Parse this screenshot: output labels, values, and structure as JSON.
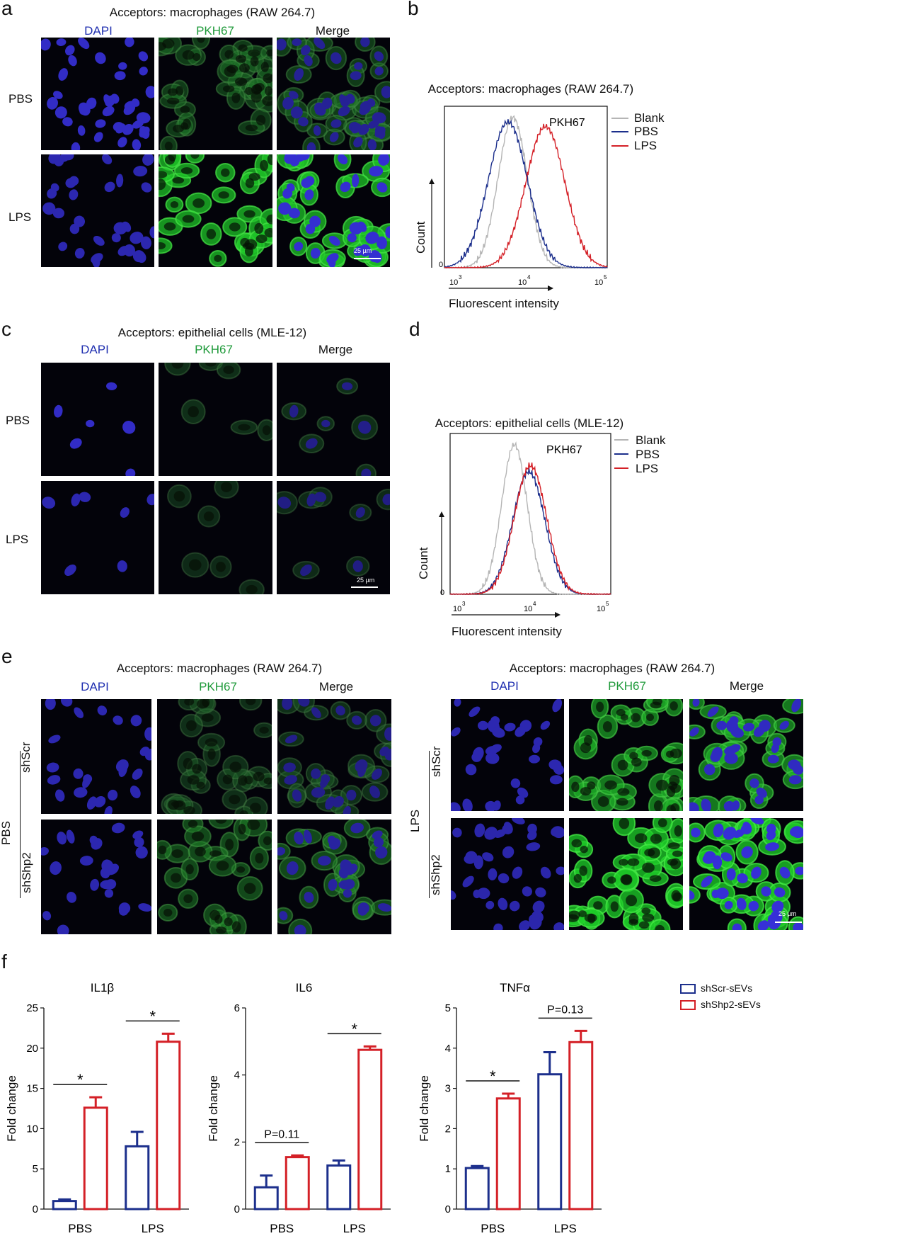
{
  "panel_a": {
    "letter": "a",
    "title": "Acceptors: macrophages (RAW 264.7)",
    "cols": [
      "DAPI",
      "PKH67",
      "Merge"
    ],
    "rows": [
      "PBS",
      "LPS"
    ],
    "scale": "25 µm"
  },
  "panel_b": {
    "letter": "b",
    "title": "Acceptors: macrophages (RAW 264.7)",
    "marker": "PKH67",
    "legend": [
      "Blank",
      "PBS",
      "LPS"
    ],
    "ylabel": "Count",
    "xlabel": "Fluorescent intensity",
    "zero": "0",
    "ticks": [
      "10",
      "3",
      "10",
      "4",
      "10",
      "5"
    ]
  },
  "panel_c": {
    "letter": "c",
    "title": "Acceptors: epithelial cells (MLE-12)",
    "cols": [
      "DAPI",
      "PKH67",
      "Merge"
    ],
    "rows": [
      "PBS",
      "LPS"
    ],
    "scale": "25 µm"
  },
  "panel_d": {
    "letter": "d",
    "title": "Acceptors: epithelial cells (MLE-12)",
    "marker": "PKH67",
    "legend": [
      "Blank",
      "PBS",
      "LPS"
    ],
    "ylabel": "Count",
    "xlabel": "Fluorescent intensity",
    "zero": "0",
    "ticks": [
      "10",
      "3",
      "10",
      "4",
      "10",
      "5"
    ]
  },
  "panel_e": {
    "letter": "e",
    "left": {
      "title": "Acceptors: macrophages (RAW 264.7)",
      "cols": [
        "DAPI",
        "PKH67",
        "Merge"
      ],
      "group": "PBS",
      "rows": [
        "shScr",
        "shShp2"
      ]
    },
    "right": {
      "title": "Acceptors: macrophages (RAW 264.7)",
      "cols": [
        "DAPI",
        "PKH67",
        "Merge"
      ],
      "group": "LPS",
      "rows": [
        "shScr",
        "shShp2"
      ],
      "scale": "25 µm"
    }
  },
  "panel_f": {
    "letter": "f",
    "legend": [
      "shScr-sEVs",
      "shShp2-sEVs"
    ]
  },
  "colors": {
    "blank": "#b5b5b5",
    "pbs": "#1c2f8c",
    "lps": "#d42027",
    "dapi": "#2a2ac8",
    "pkh": "#2fc43a"
  },
  "chart_data": [
    {
      "type": "bar",
      "title": "IL1β",
      "ylabel": "Fold change",
      "categories": [
        "PBS",
        "LPS"
      ],
      "ylim": [
        0,
        25
      ],
      "yticks": [
        "0",
        "5",
        "10",
        "15",
        "20",
        "25"
      ],
      "series": [
        {
          "name": "shScr-sEVs",
          "values": [
            1.0,
            7.8
          ],
          "err": [
            0.2,
            1.8
          ]
        },
        {
          "name": "shShp2-sEVs",
          "values": [
            12.6,
            20.8
          ],
          "err": [
            1.3,
            1.0
          ]
        }
      ],
      "annotations": [
        "*",
        "*"
      ]
    },
    {
      "type": "bar",
      "title": "IL6",
      "ylabel": "Fold change",
      "categories": [
        "PBS",
        "LPS"
      ],
      "ylim": [
        0,
        6
      ],
      "yticks": [
        "0",
        "2",
        "4",
        "6"
      ],
      "series": [
        {
          "name": "shScr-sEVs",
          "values": [
            0.65,
            1.3
          ],
          "err": [
            0.35,
            0.15
          ]
        },
        {
          "name": "shShp2-sEVs",
          "values": [
            1.55,
            4.75
          ],
          "err": [
            0.05,
            0.1
          ]
        }
      ],
      "annotations": [
        "P=0.11",
        "*"
      ]
    },
    {
      "type": "bar",
      "title": "TNFα",
      "ylabel": "Fold change",
      "categories": [
        "PBS",
        "LPS"
      ],
      "ylim": [
        0,
        5
      ],
      "yticks": [
        "0",
        "1",
        "2",
        "3",
        "4",
        "5"
      ],
      "series": [
        {
          "name": "shScr-sEVs",
          "values": [
            1.02,
            3.35
          ],
          "err": [
            0.05,
            0.55
          ]
        },
        {
          "name": "shShp2-sEVs",
          "values": [
            2.75,
            4.15
          ],
          "err": [
            0.12,
            0.28
          ]
        }
      ],
      "annotations": [
        "*",
        "P=0.13"
      ]
    }
  ]
}
